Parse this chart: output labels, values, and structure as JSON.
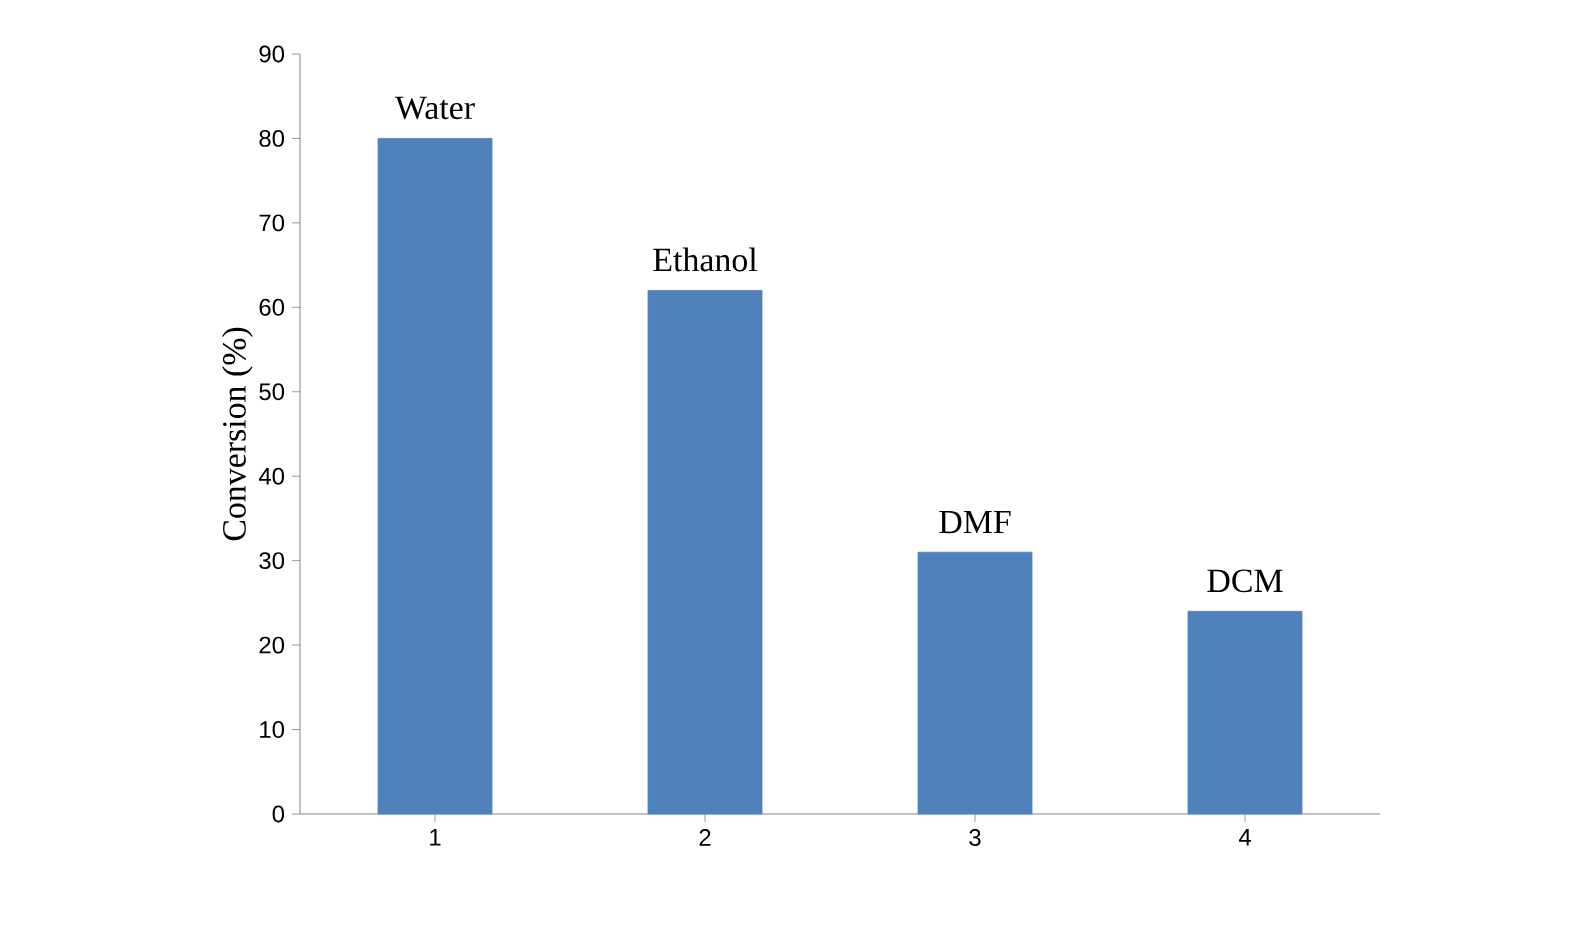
{
  "chart_data": {
    "type": "bar",
    "ylabel": "Conversion (%)",
    "categories": [
      "1",
      "2",
      "3",
      "4"
    ],
    "values": [
      80,
      62,
      31,
      24
    ],
    "color": "#4f81bd",
    "ylim": [
      0,
      90
    ],
    "yticks": [
      0,
      10,
      20,
      30,
      40,
      50,
      60,
      70,
      80,
      90
    ],
    "grid": false,
    "annotations": [
      {
        "text": "Water",
        "x": "1",
        "y": 80
      },
      {
        "text": "Ethanol",
        "x": "2",
        "y": 62
      },
      {
        "text": "DMF",
        "x": "3",
        "y": 31
      },
      {
        "text": "DCM",
        "x": "4",
        "y": 24
      }
    ]
  }
}
